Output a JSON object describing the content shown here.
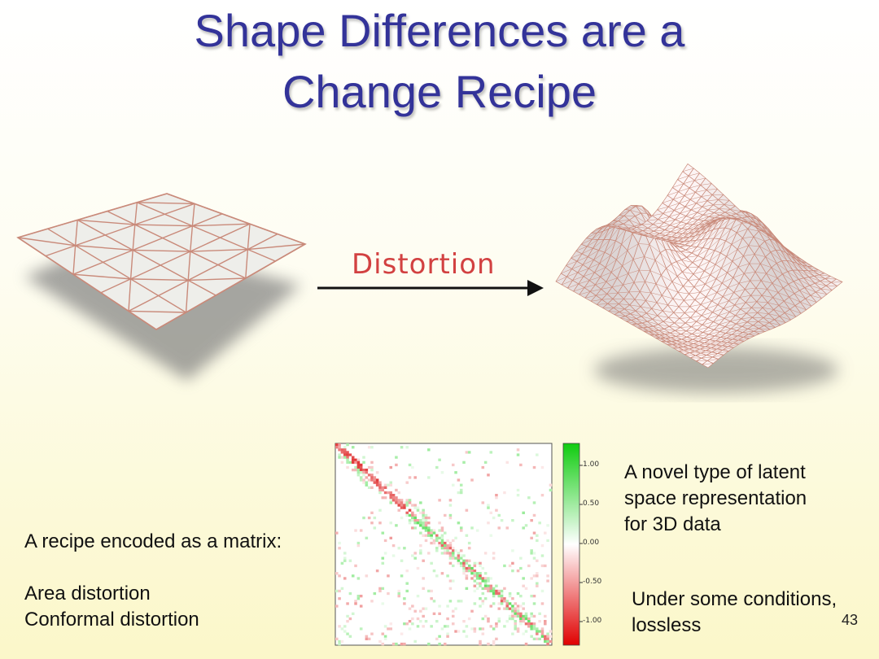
{
  "slide": {
    "title_line1": "Shape Differences are a",
    "title_line2": "Change Recipe",
    "arrow_label": "Distortion",
    "left_text": {
      "line1": "A recipe encoded as a matrix:",
      "line2": "Area distortion",
      "line3": "Conformal distortion"
    },
    "right_text_top": {
      "line1": "A novel type of latent",
      "line2": "space representation",
      "line3": "for 3D data"
    },
    "right_text_bottom": {
      "line1": "Under some conditions,",
      "line2": "lossless"
    },
    "page_number": "43"
  },
  "colorbar": {
    "ticks": [
      "1.00",
      "0.50",
      "0.00",
      "-0.50",
      "-1.00"
    ],
    "colors": {
      "positive": "#22dd22",
      "zero": "#ffffff",
      "negative": "#ee1111"
    }
  },
  "colors": {
    "title": "#333399",
    "mesh_edge": "#c98a7a",
    "mesh_fill": "#eeeeea",
    "arrow_label": "#d24141"
  }
}
